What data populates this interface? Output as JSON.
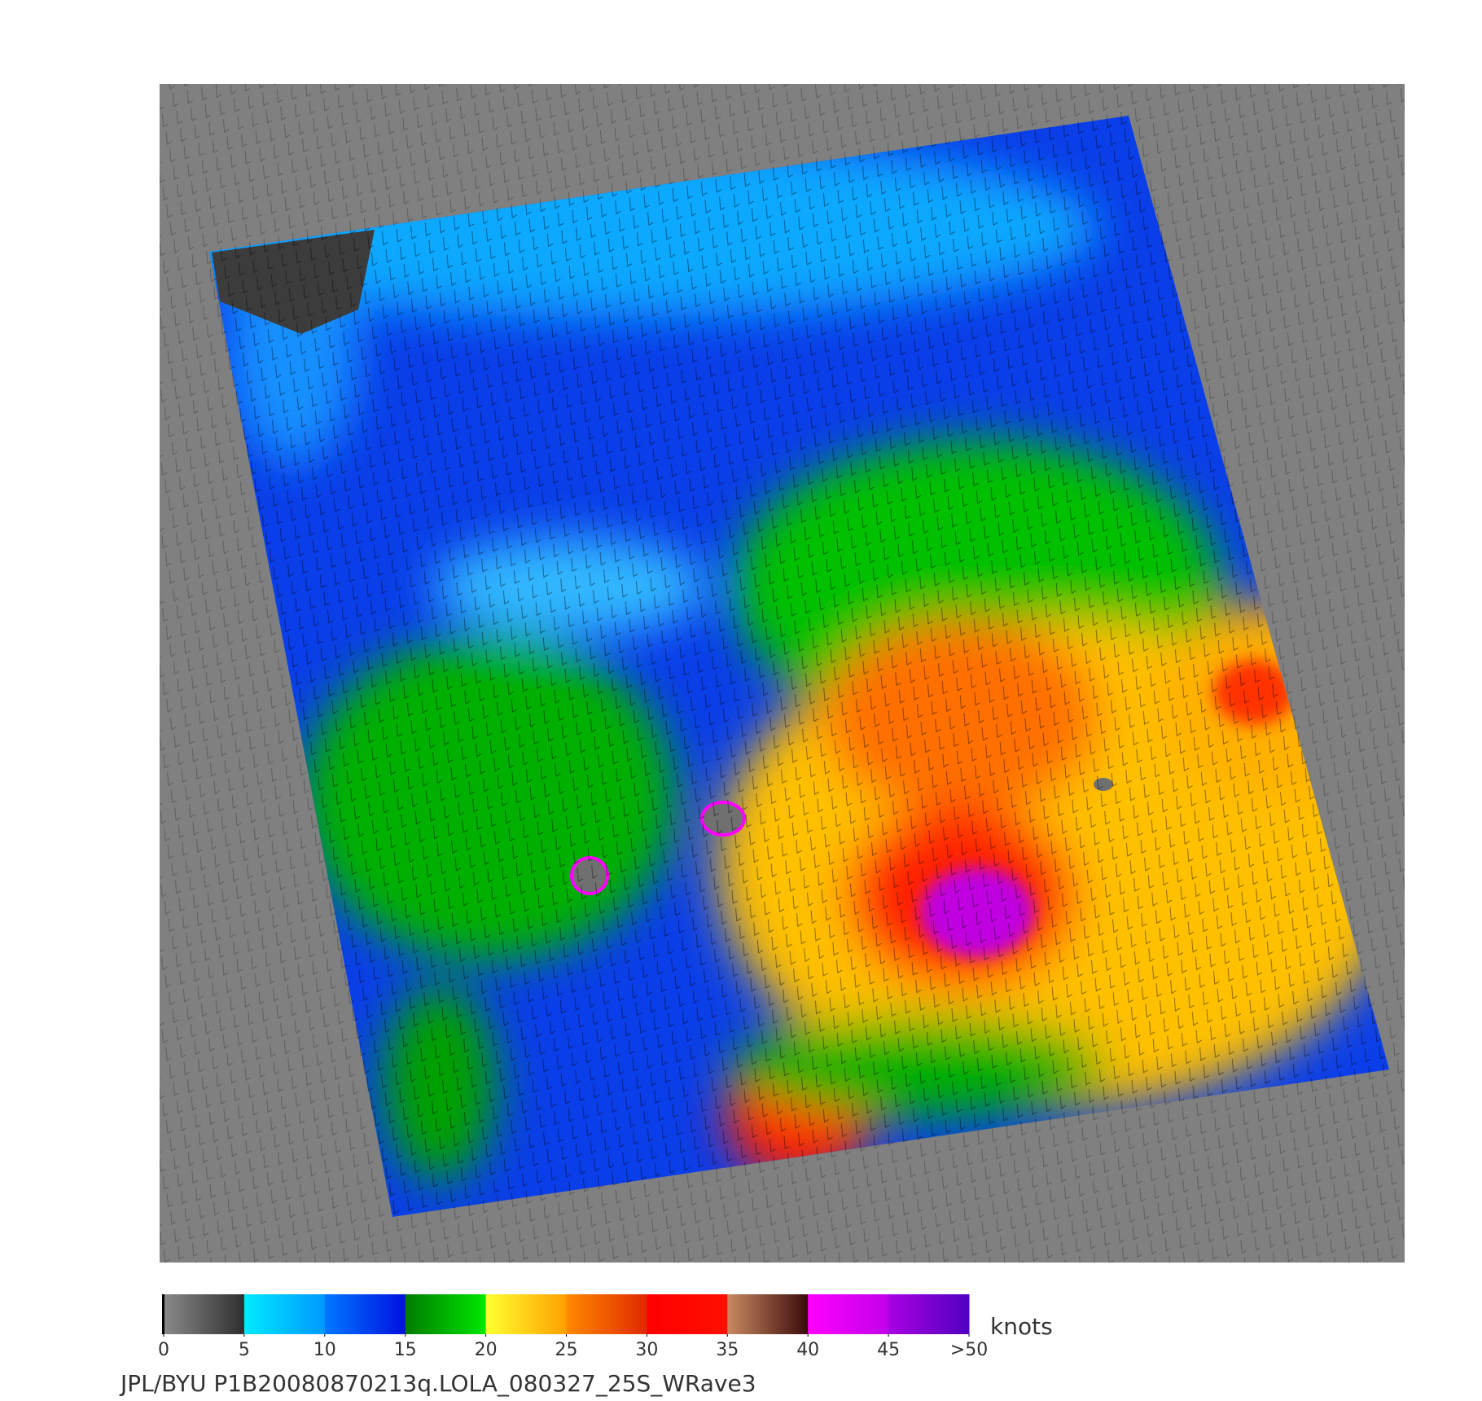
{
  "colorbar": {
    "ticks": [
      0,
      5,
      10,
      15,
      20,
      25,
      30,
      35,
      40,
      45,
      {
        "value": 50,
        "label": ">50"
      }
    ],
    "unit": "knots",
    "colors": [
      [
        "#8a8a8a",
        "#2e2e2e"
      ],
      [
        "#00eaff",
        "#0098ff"
      ],
      [
        "#0078ff",
        "#0010e0"
      ],
      [
        "#007a00",
        "#00e800"
      ],
      [
        "#ffff30",
        "#ffa000"
      ],
      [
        "#ff8a00",
        "#e02800"
      ],
      [
        "#ff0000",
        "#ff1000"
      ],
      [
        "#c88a60",
        "#3a0a0a"
      ],
      [
        "#ff00ff",
        "#c000e8"
      ],
      [
        "#a800e0",
        "#5000c0"
      ]
    ]
  },
  "caption": "JPL/BYU  P1B20080870213q.LOLA_080327_25S_WRave3"
}
